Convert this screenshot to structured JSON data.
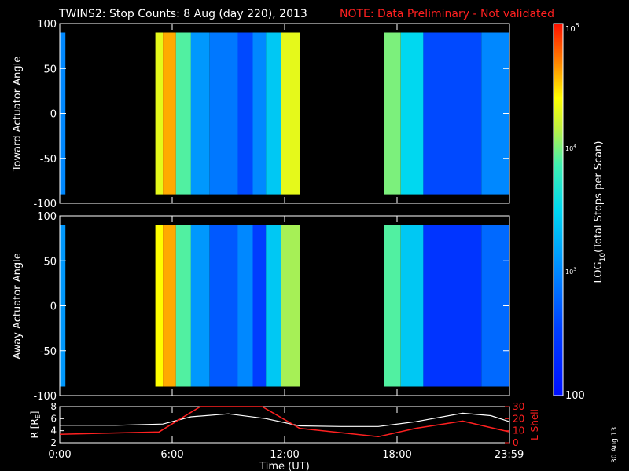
{
  "header": {
    "title": "TWINS2: Stop Counts:  8 Aug (day 220), 2013",
    "note": "NOTE: Data Preliminary - Not validated"
  },
  "panels": [
    {
      "ylabel": "Toward Actuator Angle",
      "yticks": [
        "100",
        "50",
        "0",
        "-50",
        "-100"
      ]
    },
    {
      "ylabel": "Away Actuator Angle",
      "yticks": [
        "100",
        "50",
        "0",
        "-50",
        "-100"
      ]
    }
  ],
  "orbit_panel": {
    "ylabel_left": "R [R",
    "ylabel_left_sub": "E",
    "ylabel_left_end": "]",
    "ylabel_right": "L Shell",
    "left_ticks": [
      "8",
      "6",
      "4",
      "2"
    ],
    "right_ticks": [
      "30",
      "20",
      "10",
      "0"
    ]
  },
  "xaxis": {
    "ticks": [
      "0:00",
      "6:00",
      "12:00",
      "18:00",
      "23:59"
    ],
    "label": "Time (UT)"
  },
  "colorbar": {
    "label": "LOG",
    "label_sub": "10",
    "label_rest": "(Total Stops per Scan)",
    "tick_top": "10",
    "tick_top_exp": "5",
    "tick_4": "10",
    "tick_4_exp": "4",
    "tick_3": "10",
    "tick_3_exp": "3",
    "tick_bottom": "100"
  },
  "stamp": "30 Aug 13",
  "colors": {
    "note": "#ff2020",
    "lshell": "#ff2020",
    "radius": "#ffffff"
  },
  "chart_data": {
    "type": "heatmap",
    "x_unit": "hours UT",
    "xlim": [
      0,
      24
    ],
    "ylim": [
      -100,
      100
    ],
    "clim_log10": [
      2,
      5
    ],
    "data_intervals_hours": [
      [
        0,
        0.3
      ],
      [
        5.1,
        12.8
      ],
      [
        17.3,
        24
      ]
    ],
    "log10_counts_by_time": {
      "toward": [
        {
          "t": [
            0.0,
            0.3
          ],
          "v": 3.0
        },
        {
          "t": [
            5.1,
            5.5
          ],
          "v": 4.3
        },
        {
          "t": [
            5.5,
            6.2
          ],
          "v": 4.6
        },
        {
          "t": [
            6.2,
            7.0
          ],
          "v": 3.9
        },
        {
          "t": [
            7.0,
            8.0
          ],
          "v": 3.1
        },
        {
          "t": [
            8.0,
            9.5
          ],
          "v": 2.9
        },
        {
          "t": [
            9.5,
            10.3
          ],
          "v": 2.6
        },
        {
          "t": [
            10.3,
            11.0
          ],
          "v": 3.0
        },
        {
          "t": [
            11.0,
            11.8
          ],
          "v": 3.4
        },
        {
          "t": [
            11.8,
            12.8
          ],
          "v": 4.3
        },
        {
          "t": [
            17.3,
            18.2
          ],
          "v": 4.0
        },
        {
          "t": [
            18.2,
            19.4
          ],
          "v": 3.5
        },
        {
          "t": [
            19.4,
            22.5
          ],
          "v": 2.6
        },
        {
          "t": [
            22.5,
            24.0
          ],
          "v": 3.0
        }
      ],
      "away": [
        {
          "t": [
            0.0,
            0.3
          ],
          "v": 3.1
        },
        {
          "t": [
            5.1,
            5.5
          ],
          "v": 4.4
        },
        {
          "t": [
            5.5,
            6.2
          ],
          "v": 4.6
        },
        {
          "t": [
            6.2,
            7.0
          ],
          "v": 3.9
        },
        {
          "t": [
            7.0,
            8.0
          ],
          "v": 3.1
        },
        {
          "t": [
            8.0,
            9.5
          ],
          "v": 2.7
        },
        {
          "t": [
            9.5,
            10.3
          ],
          "v": 3.0
        },
        {
          "t": [
            10.3,
            11.0
          ],
          "v": 2.5
        },
        {
          "t": [
            11.0,
            11.8
          ],
          "v": 3.4
        },
        {
          "t": [
            11.8,
            12.8
          ],
          "v": 4.1
        },
        {
          "t": [
            17.3,
            18.2
          ],
          "v": 3.9
        },
        {
          "t": [
            18.2,
            19.4
          ],
          "v": 3.4
        },
        {
          "t": [
            19.4,
            22.5
          ],
          "v": 2.4
        },
        {
          "t": [
            22.5,
            24.0
          ],
          "v": 2.8
        }
      ]
    },
    "orbit": {
      "radius_left_ylim": [
        2,
        8
      ],
      "lshell_right_ylim": [
        0,
        30
      ],
      "radius_RE": [
        [
          0,
          4.9
        ],
        [
          3,
          4.9
        ],
        [
          5.5,
          5.1
        ],
        [
          7,
          6.3
        ],
        [
          9,
          6.8
        ],
        [
          11,
          6.0
        ],
        [
          12.8,
          4.8
        ],
        [
          15,
          4.7
        ],
        [
          17,
          4.7
        ],
        [
          19,
          5.5
        ],
        [
          21.5,
          6.9
        ],
        [
          23,
          6.5
        ],
        [
          24,
          5.5
        ]
      ],
      "lshell": [
        [
          0,
          7
        ],
        [
          5.3,
          9
        ],
        [
          7.5,
          35
        ],
        [
          10.8,
          35
        ],
        [
          12.8,
          12
        ],
        [
          17,
          5
        ],
        [
          19,
          12
        ],
        [
          21.5,
          18
        ],
        [
          24,
          9
        ]
      ]
    }
  }
}
